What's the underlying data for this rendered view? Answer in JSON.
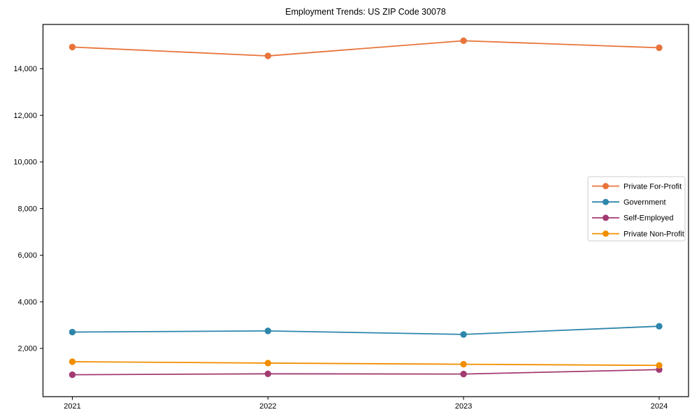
{
  "title": "Employment Trends: US ZIP Code 30078",
  "chart_data": {
    "type": "line",
    "title": "Employment Trends: US ZIP Code 30078",
    "xlabel": "",
    "ylabel": "",
    "grid": false,
    "legend_position": "center right",
    "marker": "circle",
    "x": [
      2021,
      2022,
      2023,
      2024
    ],
    "x_tick_labels": [
      "2021",
      "2022",
      "2023",
      "2024"
    ],
    "xlim": [
      2020.85,
      2024.15
    ],
    "ylim": [
      -70,
      15900
    ],
    "yticks": [
      {
        "value": 2000,
        "label": "2,000"
      },
      {
        "value": 4000,
        "label": "4,000"
      },
      {
        "value": 6000,
        "label": "6,000"
      },
      {
        "value": 8000,
        "label": "8,000"
      },
      {
        "value": 10000,
        "label": "10,000"
      },
      {
        "value": 12000,
        "label": "12,000"
      },
      {
        "value": 14000,
        "label": "14,000"
      }
    ],
    "series": [
      {
        "name": "Private For-Profit",
        "color": "#E8743B",
        "values": [
          14930,
          14550,
          15200,
          14900
        ]
      },
      {
        "name": "Government",
        "color": "#2E86AB",
        "values": [
          2700,
          2750,
          2600,
          2950
        ]
      },
      {
        "name": "Self-Employed",
        "color": "#A23B72",
        "values": [
          870,
          910,
          900,
          1090
        ]
      },
      {
        "name": "Private Non-Profit",
        "color": "#F18F01",
        "values": [
          1430,
          1370,
          1320,
          1270
        ]
      }
    ]
  }
}
